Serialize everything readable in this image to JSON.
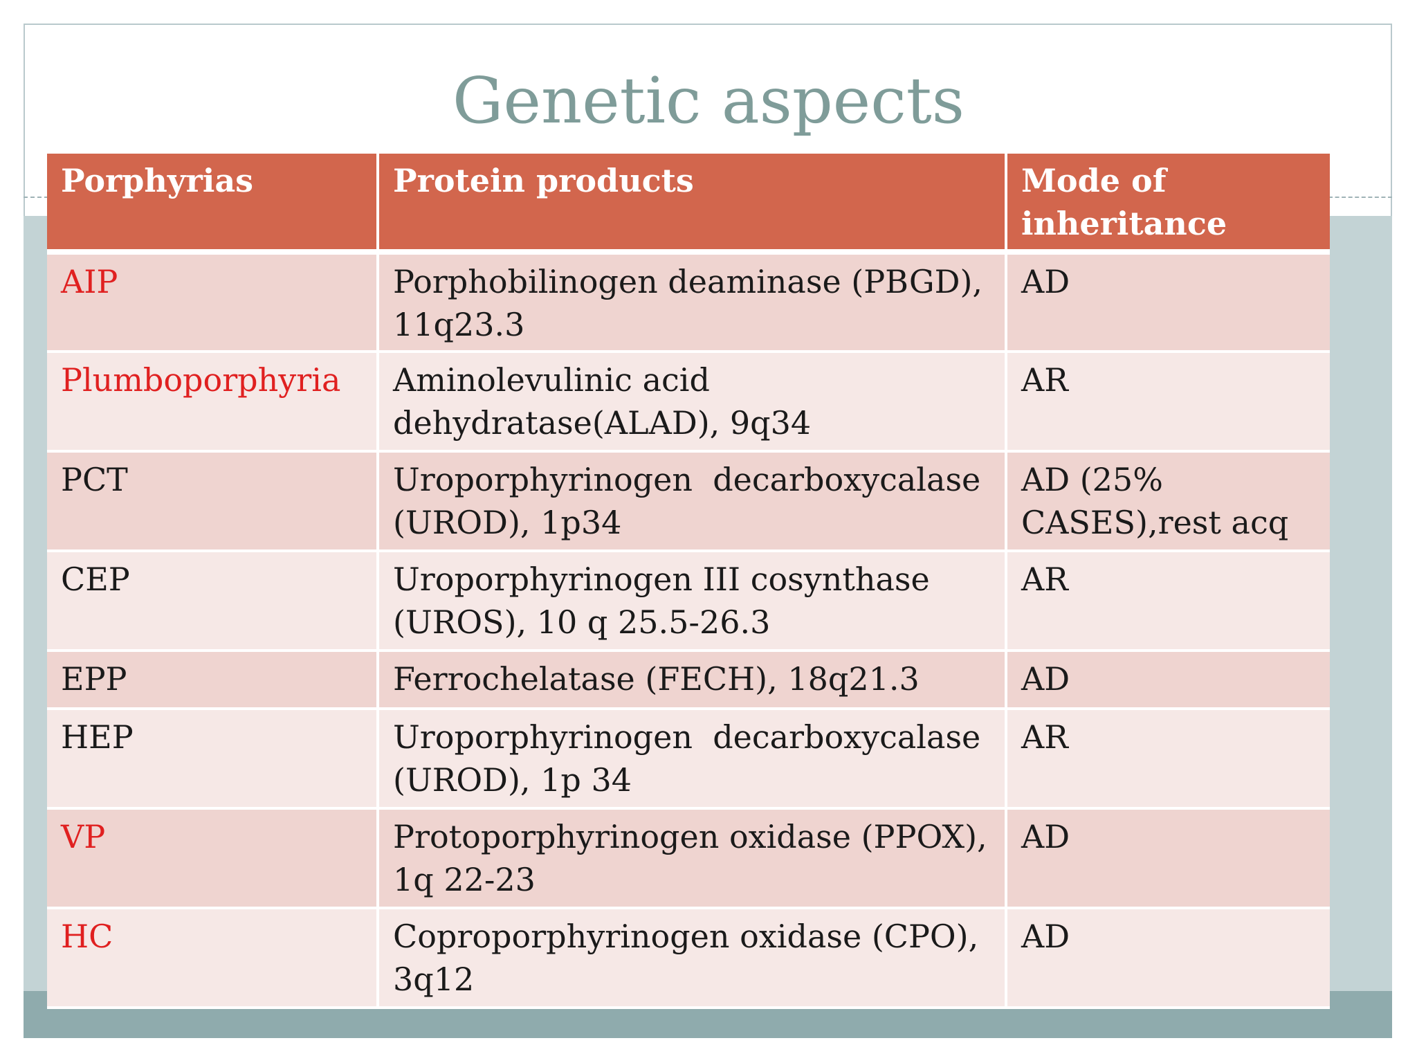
{
  "slide": {
    "title": "Genetic aspects",
    "colors": {
      "title": "#7f9c99",
      "header_bg": "#d2664d",
      "row_odd": "#efd4d0",
      "row_even": "#f6e8e6",
      "highlight_text": "#e02020",
      "band": "#c3d3d5"
    }
  },
  "table": {
    "headers": {
      "col1": "Porphyrias",
      "col2": "Protein products",
      "col3": "Mode of inheritance"
    },
    "rows": [
      {
        "porphyria": "AIP",
        "protein": "Porphobilinogen deaminase (PBGD), 11q23.3",
        "mode": "AD",
        "highlight": true
      },
      {
        "porphyria": "Plumboporphyria",
        "protein": "Aminolevulinic acid dehydratase(ALAD), 9q34",
        "mode": "AR",
        "highlight": true
      },
      {
        "porphyria": "PCT",
        "protein": "Uroporphyrinogen  decarboxycalase (UROD), 1p34",
        "mode": "AD (25% CASES),rest acq",
        "highlight": false
      },
      {
        "porphyria": "CEP",
        "protein": "Uroporphyrinogen III cosynthase (UROS), 10 q 25.5-26.3",
        "mode": "AR",
        "highlight": false
      },
      {
        "porphyria": "EPP",
        "protein": "Ferrochelatase (FECH), 18q21.3",
        "mode": "AD",
        "highlight": false
      },
      {
        "porphyria": "HEP",
        "protein": "Uroporphyrinogen  decarboxycalase (UROD), 1p 34",
        "mode": "AR",
        "highlight": false
      },
      {
        "porphyria": "VP",
        "protein": "Protoporphyrinogen oxidase (PPOX), 1q 22-23",
        "mode": "AD",
        "highlight": true
      },
      {
        "porphyria": "HC",
        "protein": "Coproporphyrinogen oxidase (CPO), 3q12",
        "mode": "AD",
        "highlight": true
      }
    ]
  }
}
